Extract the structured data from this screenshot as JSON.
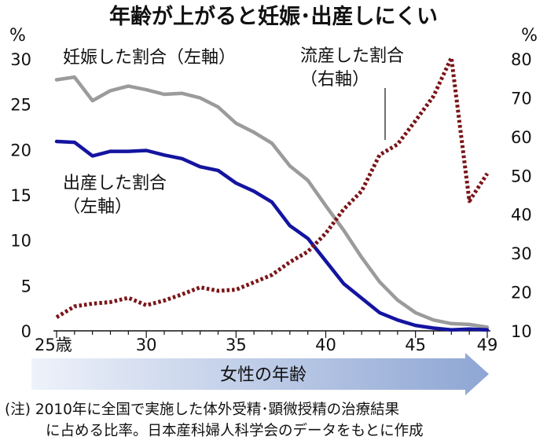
{
  "chart_data": {
    "type": "line",
    "title": "年齢が上がると妊娠･出産しにくい",
    "left_axis": {
      "unit": "%",
      "range": [
        0,
        30
      ],
      "ticks": [
        "0",
        "5",
        "10",
        "15",
        "20",
        "25",
        "30"
      ]
    },
    "right_axis": {
      "unit": "%",
      "range": [
        10,
        80
      ],
      "ticks": [
        "10",
        "20",
        "30",
        "40",
        "50",
        "60",
        "70",
        "80"
      ]
    },
    "x_axis": {
      "range": [
        25,
        49
      ],
      "tick_labels": [
        "25歳",
        "30",
        "35",
        "40",
        "45",
        "49"
      ],
      "tick_values": [
        25,
        30,
        35,
        40,
        45,
        49
      ],
      "label": "女性の年齢"
    },
    "x": [
      25,
      26,
      27,
      28,
      29,
      30,
      31,
      32,
      33,
      34,
      35,
      36,
      37,
      38,
      39,
      40,
      41,
      42,
      43,
      44,
      45,
      46,
      47,
      48,
      49
    ],
    "series": [
      {
        "name": "妊娠した割合",
        "label_line1": "妊娠した割合（左軸）",
        "axis": "left",
        "color": "#9b9b9b",
        "style": "solid",
        "values": [
          27.7,
          28.0,
          25.4,
          26.5,
          27.0,
          26.6,
          26.1,
          26.2,
          25.7,
          24.7,
          22.9,
          21.9,
          20.7,
          18.2,
          16.6,
          13.8,
          11.1,
          8.1,
          5.4,
          3.4,
          2.0,
          1.2,
          0.8,
          0.7,
          0.4
        ]
      },
      {
        "name": "出産した割合",
        "label_line1": "出産した割合",
        "label_line2": "（左軸）",
        "axis": "left",
        "color": "#1414a0",
        "style": "solid",
        "values": [
          20.9,
          20.8,
          19.3,
          19.8,
          19.8,
          19.9,
          19.4,
          19.0,
          18.1,
          17.7,
          16.3,
          15.4,
          14.2,
          11.6,
          10.2,
          7.7,
          5.2,
          3.6,
          2.0,
          1.2,
          0.6,
          0.3,
          0.1,
          0.2,
          0.1
        ]
      },
      {
        "name": "流産した割合",
        "label_line1": "流産した割合",
        "label_line2": "（右軸）",
        "axis": "right",
        "color": "#7a1518",
        "style": "dotted",
        "values": [
          13.5,
          16.3,
          17.0,
          17.4,
          18.5,
          16.6,
          17.8,
          19.4,
          21.2,
          20.3,
          20.6,
          22.5,
          24.4,
          27.7,
          30.4,
          35.1,
          41.3,
          46.0,
          55.3,
          58.0,
          64.1,
          70.4,
          80.3,
          43.4,
          50.5
        ]
      }
    ],
    "note_line1": "(注) 2010年に全国で実施した体外受精･顕微授精の治療結果",
    "note_line2": "に占める比率。日本産科婦人科学会のデータをもとに作成"
  }
}
